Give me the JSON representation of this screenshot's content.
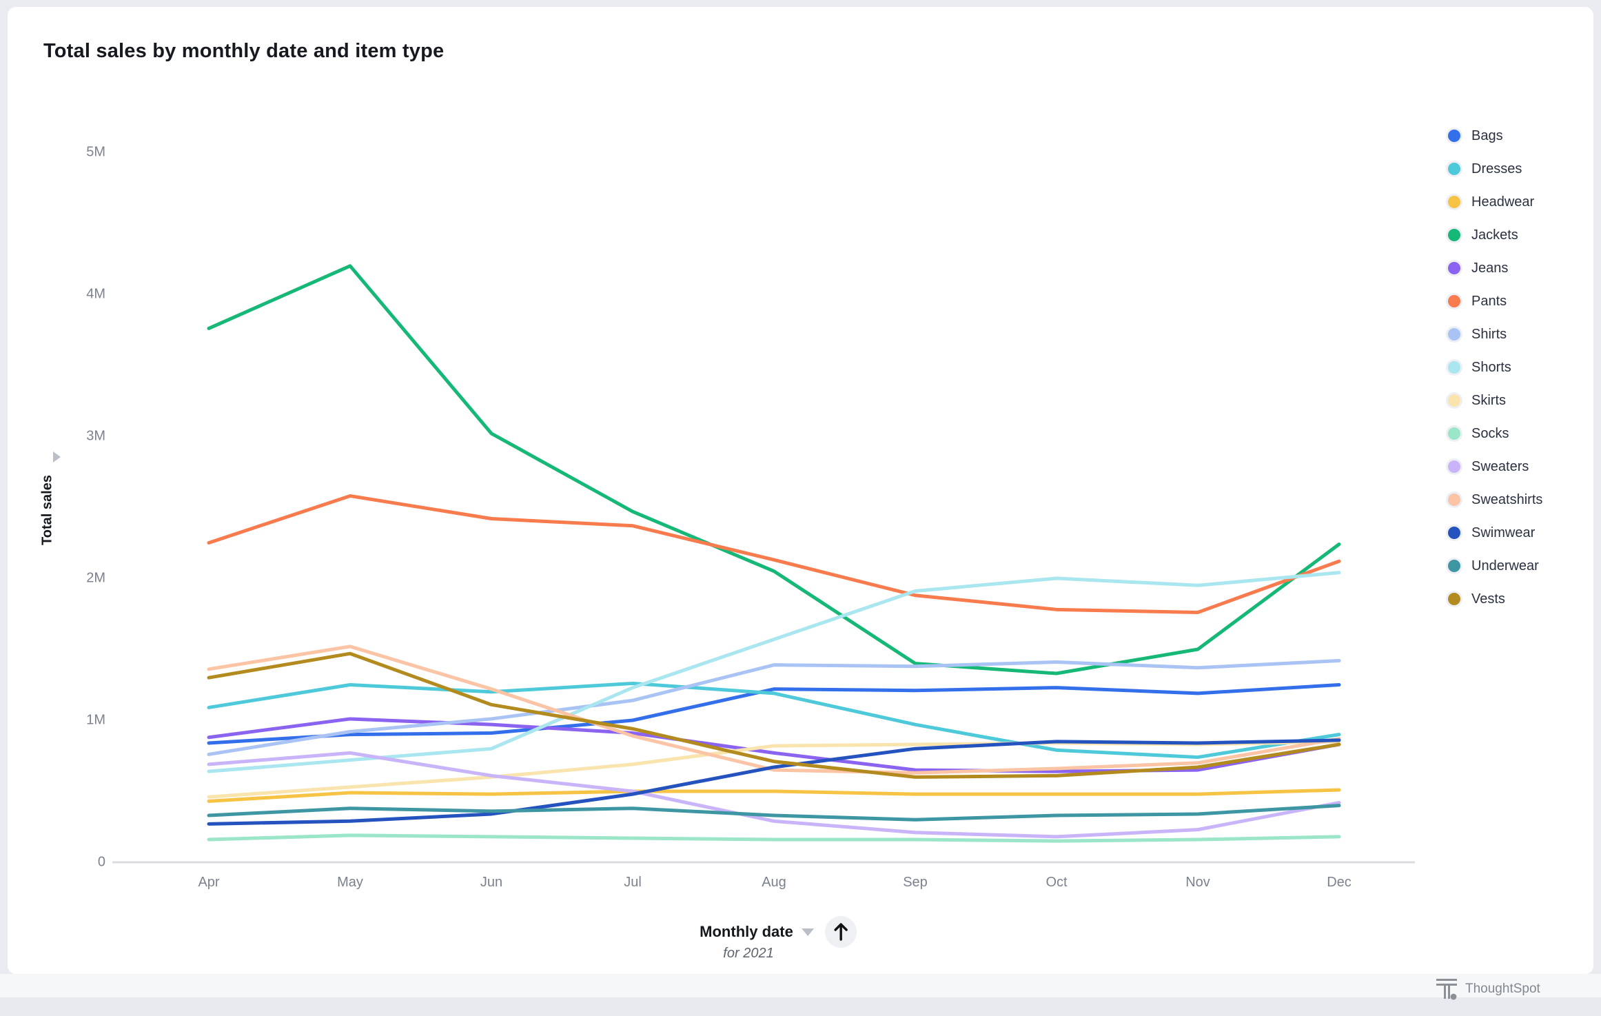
{
  "header": {
    "title": "Total sales by monthly date and item type"
  },
  "y_axis": {
    "title": "Total sales",
    "tick_labels": [
      "5M",
      "4M",
      "3M",
      "2M",
      "1M",
      "0"
    ],
    "expand_icon": "right-triangle-icon"
  },
  "x_axis": {
    "title": "Monthly date",
    "subtitle": "for 2021",
    "caret_icon": "caret-down-icon",
    "sort_icon": "arrow-up-icon"
  },
  "legend": {
    "position": "right",
    "items": [
      {
        "label": "Bags",
        "color": "#336FEA"
      },
      {
        "label": "Dresses",
        "color": "#4EC9D9"
      },
      {
        "label": "Headwear",
        "color": "#F7C344"
      },
      {
        "label": "Jackets",
        "color": "#16B877"
      },
      {
        "label": "Jeans",
        "color": "#8A63F0"
      },
      {
        "label": "Pants",
        "color": "#F87B4D"
      },
      {
        "label": "Shirts",
        "color": "#A9C3F5"
      },
      {
        "label": "Shorts",
        "color": "#A9E6EF"
      },
      {
        "label": "Skirts",
        "color": "#F9E4AE"
      },
      {
        "label": "Socks",
        "color": "#9BE5C9"
      },
      {
        "label": "Sweaters",
        "color": "#C9B4F9"
      },
      {
        "label": "Sweatshirts",
        "color": "#FAC4A5"
      },
      {
        "label": "Swimwear",
        "color": "#2452BE"
      },
      {
        "label": "Underwear",
        "color": "#3E96A3"
      },
      {
        "label": "Vests",
        "color": "#B38A1E"
      }
    ]
  },
  "branding": {
    "label": "ThoughtSpot",
    "icon": "thoughtspot-logo-icon"
  },
  "chart_data": {
    "type": "line",
    "title": "Total sales by monthly date and item type",
    "xlabel": "Monthly date",
    "ylabel": "Total sales",
    "x": [
      "Apr",
      "May",
      "Jun",
      "Jul",
      "Aug",
      "Sep",
      "Oct",
      "Nov",
      "Dec"
    ],
    "unit": "M",
    "ylim": [
      0,
      5
    ],
    "yticks": [
      5,
      4,
      3,
      2,
      1,
      0
    ],
    "grid": false,
    "legend_position": "right",
    "series": [
      {
        "name": "Bags",
        "color": "#336FEA",
        "values": [
          0.84,
          0.9,
          0.91,
          1.0,
          1.22,
          1.21,
          1.23,
          1.19,
          1.25
        ]
      },
      {
        "name": "Dresses",
        "color": "#4EC9D9",
        "values": [
          1.09,
          1.25,
          1.2,
          1.26,
          1.19,
          0.97,
          0.79,
          0.74,
          0.9
        ]
      },
      {
        "name": "Headwear",
        "color": "#F7C344",
        "values": [
          0.43,
          0.49,
          0.48,
          0.5,
          0.5,
          0.48,
          0.48,
          0.48,
          0.51
        ]
      },
      {
        "name": "Jackets",
        "color": "#16B877",
        "values": [
          3.76,
          4.2,
          3.02,
          2.47,
          2.05,
          1.4,
          1.33,
          1.5,
          2.24
        ]
      },
      {
        "name": "Jeans",
        "color": "#8A63F0",
        "values": [
          0.88,
          1.01,
          0.97,
          0.91,
          0.77,
          0.65,
          0.64,
          0.65,
          0.83
        ]
      },
      {
        "name": "Pants",
        "color": "#F87B4D",
        "values": [
          2.25,
          2.58,
          2.42,
          2.37,
          2.13,
          1.88,
          1.78,
          1.76,
          2.12
        ]
      },
      {
        "name": "Shirts",
        "color": "#A9C3F5",
        "values": [
          0.76,
          0.92,
          1.01,
          1.14,
          1.39,
          1.38,
          1.41,
          1.37,
          1.42
        ]
      },
      {
        "name": "Shorts",
        "color": "#A9E6EF",
        "values": [
          0.64,
          0.72,
          0.8,
          1.23,
          1.57,
          1.91,
          2.0,
          1.95,
          2.04
        ]
      },
      {
        "name": "Skirts",
        "color": "#F9E4AE",
        "values": [
          0.46,
          0.53,
          0.6,
          0.69,
          0.82,
          0.83,
          0.84,
          0.83,
          0.85
        ]
      },
      {
        "name": "Socks",
        "color": "#9BE5C9",
        "values": [
          0.16,
          0.19,
          0.18,
          0.17,
          0.16,
          0.16,
          0.15,
          0.16,
          0.18
        ]
      },
      {
        "name": "Sweaters",
        "color": "#C9B4F9",
        "values": [
          0.69,
          0.77,
          0.61,
          0.5,
          0.29,
          0.21,
          0.18,
          0.23,
          0.42
        ]
      },
      {
        "name": "Sweatshirts",
        "color": "#FAC4A5",
        "values": [
          1.36,
          1.52,
          1.22,
          0.89,
          0.65,
          0.63,
          0.66,
          0.7,
          0.87
        ]
      },
      {
        "name": "Swimwear",
        "color": "#2452BE",
        "values": [
          0.27,
          0.29,
          0.34,
          0.48,
          0.67,
          0.8,
          0.85,
          0.84,
          0.86
        ]
      },
      {
        "name": "Underwear",
        "color": "#3E96A3",
        "values": [
          0.33,
          0.38,
          0.36,
          0.38,
          0.33,
          0.3,
          0.33,
          0.34,
          0.4
        ]
      },
      {
        "name": "Vests",
        "color": "#B38A1E",
        "values": [
          1.3,
          1.47,
          1.11,
          0.94,
          0.71,
          0.6,
          0.61,
          0.67,
          0.83
        ]
      }
    ]
  }
}
